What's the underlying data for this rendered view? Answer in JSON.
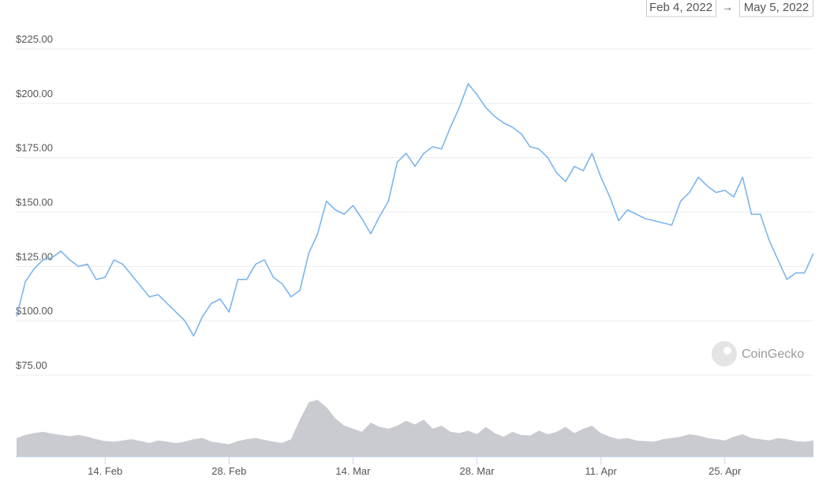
{
  "chart_data": {
    "type": "line",
    "date_range": {
      "start": "Feb 4, 2022",
      "separator": "→",
      "end": "May 5, 2022"
    },
    "watermark": "CoinGecko",
    "x": [
      "2022-02-04",
      "2022-02-05",
      "2022-02-06",
      "2022-02-07",
      "2022-02-08",
      "2022-02-09",
      "2022-02-10",
      "2022-02-11",
      "2022-02-12",
      "2022-02-13",
      "2022-02-14",
      "2022-02-15",
      "2022-02-16",
      "2022-02-17",
      "2022-02-18",
      "2022-02-19",
      "2022-02-20",
      "2022-02-21",
      "2022-02-22",
      "2022-02-23",
      "2022-02-24",
      "2022-02-25",
      "2022-02-26",
      "2022-02-27",
      "2022-02-28",
      "2022-03-01",
      "2022-03-02",
      "2022-03-03",
      "2022-03-04",
      "2022-03-05",
      "2022-03-06",
      "2022-03-07",
      "2022-03-08",
      "2022-03-09",
      "2022-03-10",
      "2022-03-11",
      "2022-03-12",
      "2022-03-13",
      "2022-03-14",
      "2022-03-15",
      "2022-03-16",
      "2022-03-17",
      "2022-03-18",
      "2022-03-19",
      "2022-03-20",
      "2022-03-21",
      "2022-03-22",
      "2022-03-23",
      "2022-03-24",
      "2022-03-25",
      "2022-03-26",
      "2022-03-27",
      "2022-03-28",
      "2022-03-29",
      "2022-03-30",
      "2022-03-31",
      "2022-04-01",
      "2022-04-02",
      "2022-04-03",
      "2022-04-04",
      "2022-04-05",
      "2022-04-06",
      "2022-04-07",
      "2022-04-08",
      "2022-04-09",
      "2022-04-10",
      "2022-04-11",
      "2022-04-12",
      "2022-04-13",
      "2022-04-14",
      "2022-04-15",
      "2022-04-16",
      "2022-04-17",
      "2022-04-18",
      "2022-04-19",
      "2022-04-20",
      "2022-04-21",
      "2022-04-22",
      "2022-04-23",
      "2022-04-24",
      "2022-04-25",
      "2022-04-26",
      "2022-04-27",
      "2022-04-28",
      "2022-04-29",
      "2022-04-30",
      "2022-05-01",
      "2022-05-02",
      "2022-05-03",
      "2022-05-04",
      "2022-05-05"
    ],
    "xlim": [
      "2022-02-04",
      "2022-05-05"
    ],
    "xticks": [
      {
        "value": "2022-02-14",
        "label": "14. Feb"
      },
      {
        "value": "2022-02-28",
        "label": "28. Feb"
      },
      {
        "value": "2022-03-14",
        "label": "14. Mar"
      },
      {
        "value": "2022-03-28",
        "label": "28. Mar"
      },
      {
        "value": "2022-04-11",
        "label": "11. Apr"
      },
      {
        "value": "2022-04-25",
        "label": "25. Apr"
      }
    ],
    "ylim": [
      75,
      225
    ],
    "yticks": [
      {
        "value": 75,
        "label": "$75.00"
      },
      {
        "value": 100,
        "label": "$100.00"
      },
      {
        "value": 125,
        "label": "$125.00"
      },
      {
        "value": 150,
        "label": "$150.00"
      },
      {
        "value": 175,
        "label": "$175.00"
      },
      {
        "value": 200,
        "label": "$200.00"
      },
      {
        "value": 225,
        "label": "$225.00"
      }
    ],
    "y2lim": [
      0,
      100
    ],
    "grid": true,
    "series": [
      {
        "color": "#7cb5ec",
        "values": [
          102,
          118,
          124,
          128,
          129,
          132,
          128,
          125,
          126,
          119,
          120,
          128,
          126,
          121,
          116,
          111,
          112,
          108,
          104,
          100,
          93,
          102,
          108,
          110,
          104,
          119,
          119,
          126,
          128,
          120,
          117,
          111,
          114,
          131,
          140,
          155,
          151,
          149,
          153,
          147,
          140,
          148,
          155,
          173,
          177,
          171,
          177,
          180,
          179,
          189,
          198,
          209,
          204,
          198,
          194,
          191,
          189,
          186,
          180,
          179,
          175,
          168,
          164,
          171,
          169,
          177,
          166,
          157,
          146,
          151,
          149,
          147,
          146,
          145,
          144,
          155,
          159,
          166,
          162,
          159,
          160,
          157,
          166,
          149,
          149,
          137,
          128,
          119,
          122,
          122,
          131
        ]
      },
      {
        "color": "#c9cbd1",
        "type": "area",
        "axis": "y2",
        "values": [
          30,
          35,
          38,
          40,
          37,
          35,
          33,
          35,
          32,
          28,
          25,
          24,
          26,
          28,
          25,
          22,
          26,
          24,
          22,
          24,
          28,
          30,
          24,
          22,
          20,
          25,
          28,
          30,
          27,
          24,
          22,
          28,
          60,
          88,
          92,
          80,
          62,
          50,
          45,
          40,
          55,
          48,
          45,
          50,
          58,
          52,
          60,
          45,
          50,
          40,
          38,
          42,
          36,
          48,
          38,
          32,
          40,
          35,
          34,
          42,
          36,
          40,
          48,
          38,
          45,
          50,
          38,
          32,
          28,
          30,
          26,
          25,
          24,
          28,
          30,
          32,
          36,
          34,
          30,
          28,
          26,
          32,
          36,
          30,
          28,
          26,
          30,
          28,
          25,
          24,
          26
        ]
      }
    ]
  }
}
